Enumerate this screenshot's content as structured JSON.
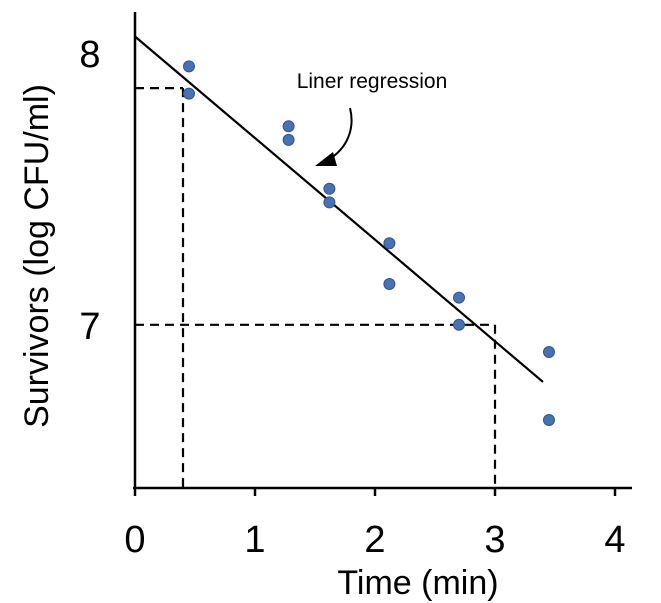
{
  "chart_data": {
    "type": "scatter",
    "xlabel": "Time (min)",
    "ylabel": "Survivors (log CFU/ml)",
    "xlim": [
      0,
      4
    ],
    "ylim": [
      6.4,
      8.15
    ],
    "x_ticks": [
      0,
      1,
      2,
      3,
      4
    ],
    "x_tick_labels": [
      "0",
      "1",
      "2",
      "3",
      "4"
    ],
    "y_ticks": [
      7,
      8
    ],
    "y_tick_labels": [
      "7",
      "8"
    ],
    "grid": false,
    "points": {
      "x": [
        0.45,
        0.45,
        1.28,
        1.28,
        1.62,
        1.62,
        2.12,
        2.12,
        2.7,
        2.7,
        3.45,
        3.45
      ],
      "y": [
        7.95,
        7.85,
        7.73,
        7.68,
        7.5,
        7.45,
        7.3,
        7.15,
        7.1,
        7.0,
        6.9,
        6.65
      ]
    },
    "regression": {
      "x": [
        0,
        3.4
      ],
      "y": [
        8.06,
        6.79
      ]
    },
    "guides": [
      {
        "x": 0.4,
        "y": 7.87
      },
      {
        "x": 3.0,
        "y": 7.0
      }
    ],
    "annotation": "Liner regression",
    "point_color": "#4a72b0"
  }
}
